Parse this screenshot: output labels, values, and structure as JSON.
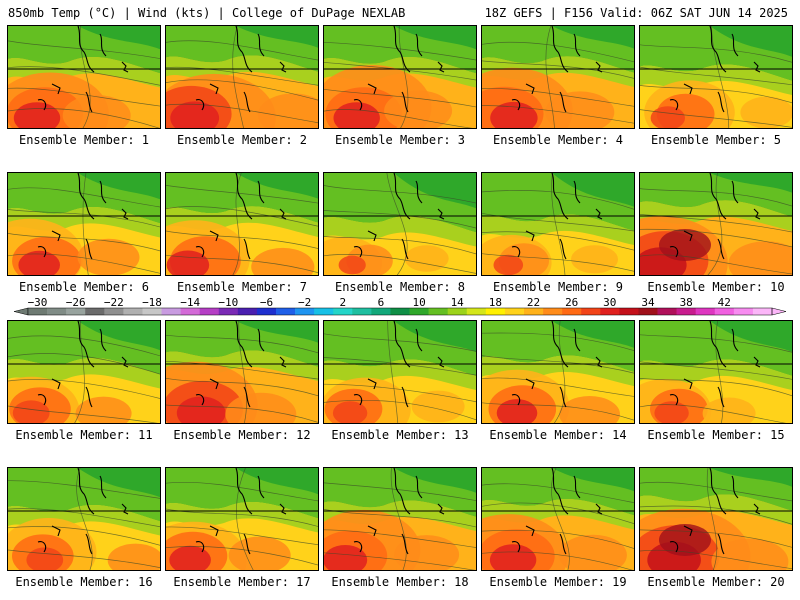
{
  "header": {
    "left": "850mb Temp (°C) | Wind (kts) | College of DuPage NEXLAB",
    "right": "18Z GEFS | F156 Valid: 06Z SAT JUN 14 2025"
  },
  "panels": [
    {
      "label": "Ensemble Member: 1",
      "warmth": 0.8
    },
    {
      "label": "Ensemble Member: 2",
      "warmth": 0.85
    },
    {
      "label": "Ensemble Member: 3",
      "warmth": 0.8
    },
    {
      "label": "Ensemble Member: 4",
      "warmth": 0.82
    },
    {
      "label": "Ensemble Member: 5",
      "warmth": 0.55
    },
    {
      "label": "Ensemble Member: 6",
      "warmth": 0.7
    },
    {
      "label": "Ensemble Member: 7",
      "warmth": 0.72
    },
    {
      "label": "Ensemble Member: 8",
      "warmth": 0.4
    },
    {
      "label": "Ensemble Member: 9",
      "warmth": 0.45
    },
    {
      "label": "Ensemble Member: 10",
      "warmth": 0.92
    },
    {
      "label": "Ensemble Member: 11",
      "warmth": 0.6
    },
    {
      "label": "Ensemble Member: 12",
      "warmth": 0.85
    },
    {
      "label": "Ensemble Member: 13",
      "warmth": 0.55
    },
    {
      "label": "Ensemble Member: 14",
      "warmth": 0.68
    },
    {
      "label": "Ensemble Member: 15",
      "warmth": 0.55
    },
    {
      "label": "Ensemble Member: 16",
      "warmth": 0.6
    },
    {
      "label": "Ensemble Member: 17",
      "warmth": 0.7
    },
    {
      "label": "Ensemble Member: 18",
      "warmth": 0.75
    },
    {
      "label": "Ensemble Member: 19",
      "warmth": 0.8
    },
    {
      "label": "Ensemble Member: 20",
      "warmth": 0.95
    }
  ],
  "colorbar": {
    "tick_labels": [
      "−30",
      "−26",
      "−22",
      "−18",
      "−14",
      "−10",
      "−6",
      "−2",
      "2",
      "6",
      "10",
      "14",
      "18",
      "22",
      "26",
      "30",
      "34",
      "38",
      "42"
    ],
    "colors": [
      "#6e7a72",
      "#808c86",
      "#98a39e",
      "#6b6b6b",
      "#8f8f8f",
      "#b0b0b0",
      "#c7c7c7",
      "#c89be0",
      "#d36ad7",
      "#b53ec5",
      "#7a2ab5",
      "#4a1fb0",
      "#1e2fcf",
      "#1f5fe8",
      "#1e94f0",
      "#17c0e6",
      "#24d5c8",
      "#1fbfa0",
      "#12a87a",
      "#0f8f46",
      "#2fa82a",
      "#64bf22",
      "#9cd31a",
      "#d4e61a",
      "#fff000",
      "#ffd21a",
      "#ffb21a",
      "#ff8c1a",
      "#ff6a14",
      "#f24418",
      "#e0201e",
      "#c4101a",
      "#a0101a",
      "#b0105a",
      "#c81c8e",
      "#de36c0",
      "#f060e0",
      "#f78cf0",
      "#fbb6f8"
    ],
    "legend_arrow_color": "#fbb6f8"
  }
}
